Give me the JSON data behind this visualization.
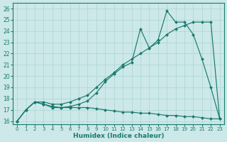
{
  "xlabel": "Humidex (Indice chaleur)",
  "xlim": [
    -0.5,
    23.5
  ],
  "ylim": [
    15.7,
    26.5
  ],
  "xticks": [
    0,
    1,
    2,
    3,
    4,
    5,
    6,
    7,
    8,
    9,
    10,
    11,
    12,
    13,
    14,
    15,
    16,
    17,
    18,
    19,
    20,
    21,
    22,
    23
  ],
  "yticks": [
    16,
    17,
    18,
    19,
    20,
    21,
    22,
    23,
    24,
    25,
    26
  ],
  "bg_color": "#cce8e8",
  "line_color": "#1a7a6e",
  "grid_color": "#aad4d4",
  "series": [
    {
      "x": [
        0,
        1,
        2,
        3,
        4,
        5,
        6,
        7,
        8,
        9,
        10,
        11,
        12,
        13,
        14,
        15,
        16,
        17,
        18,
        19,
        20,
        21,
        22,
        23
      ],
      "y": [
        16.0,
        17.0,
        17.7,
        17.5,
        17.2,
        17.2,
        17.3,
        17.5,
        17.8,
        18.5,
        19.5,
        20.2,
        20.8,
        21.2,
        24.2,
        22.5,
        23.2,
        25.8,
        24.8,
        24.8,
        23.7,
        21.5,
        19.0,
        16.2
      ]
    },
    {
      "x": [
        0,
        1,
        2,
        3,
        4,
        5,
        6,
        7,
        8,
        9,
        10,
        11,
        12,
        13,
        14,
        15,
        16,
        17,
        18,
        19,
        20,
        21,
        22,
        23
      ],
      "y": [
        16.0,
        17.0,
        17.7,
        17.7,
        17.5,
        17.5,
        17.7,
        18.0,
        18.3,
        19.0,
        19.7,
        20.3,
        21.0,
        21.5,
        22.0,
        22.5,
        23.0,
        23.7,
        24.2,
        24.5,
        24.8,
        24.8,
        24.8,
        16.2
      ]
    },
    {
      "x": [
        0,
        1,
        2,
        3,
        4,
        5,
        6,
        7,
        8,
        9,
        10,
        11,
        12,
        13,
        14,
        15,
        16,
        17,
        18,
        19,
        20,
        21,
        22,
        23
      ],
      "y": [
        16.0,
        17.0,
        17.7,
        17.5,
        17.3,
        17.2,
        17.2,
        17.2,
        17.2,
        17.1,
        17.0,
        16.9,
        16.8,
        16.8,
        16.7,
        16.7,
        16.6,
        16.5,
        16.5,
        16.4,
        16.4,
        16.3,
        16.2,
        16.2
      ]
    }
  ]
}
